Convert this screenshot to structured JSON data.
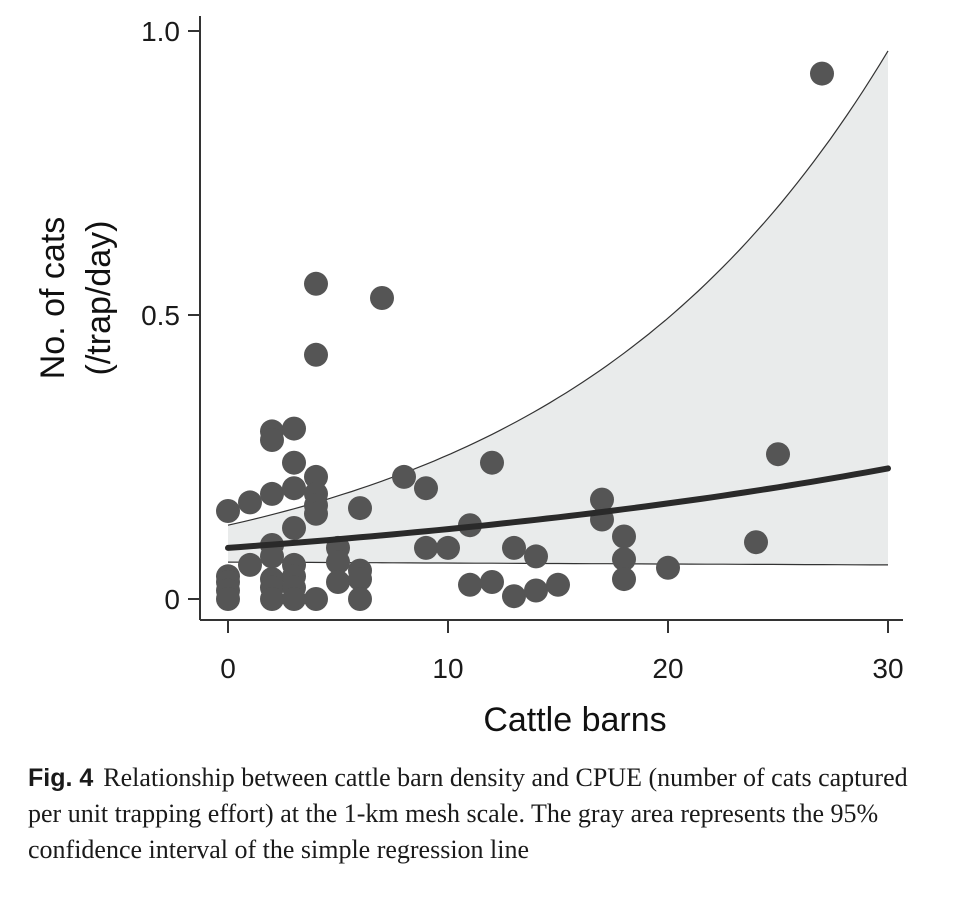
{
  "chart_data": {
    "type": "scatter",
    "xlabel": "Cattle barns",
    "ylabel_line1": "No. of cats",
    "ylabel_line2": "(/trap/day)",
    "xlim": [
      0,
      30
    ],
    "ylim": [
      0,
      1.0
    ],
    "x_ticks": [
      0,
      10,
      20,
      30
    ],
    "x_tick_labels": [
      "0",
      "10",
      "20",
      "30"
    ],
    "y_ticks": [
      0,
      0.5,
      1.0
    ],
    "y_tick_labels": [
      "0",
      "0.5",
      "1.0"
    ],
    "grid": false,
    "points": [
      {
        "x": 0,
        "y": 0.155
      },
      {
        "x": 0,
        "y": 0.04
      },
      {
        "x": 0,
        "y": 0.03
      },
      {
        "x": 0,
        "y": 0.015
      },
      {
        "x": 0,
        "y": 0.0
      },
      {
        "x": 1,
        "y": 0.17
      },
      {
        "x": 1,
        "y": 0.06
      },
      {
        "x": 2,
        "y": 0.295
      },
      {
        "x": 2,
        "y": 0.28
      },
      {
        "x": 2,
        "y": 0.185
      },
      {
        "x": 2,
        "y": 0.095
      },
      {
        "x": 2,
        "y": 0.075
      },
      {
        "x": 2,
        "y": 0.035
      },
      {
        "x": 2,
        "y": 0.02
      },
      {
        "x": 2,
        "y": 0.0
      },
      {
        "x": 3,
        "y": 0.3
      },
      {
        "x": 3,
        "y": 0.24
      },
      {
        "x": 3,
        "y": 0.195
      },
      {
        "x": 3,
        "y": 0.125
      },
      {
        "x": 3,
        "y": 0.06
      },
      {
        "x": 3,
        "y": 0.04
      },
      {
        "x": 3,
        "y": 0.02
      },
      {
        "x": 3,
        "y": 0.0
      },
      {
        "x": 4,
        "y": 0.555
      },
      {
        "x": 4,
        "y": 0.43
      },
      {
        "x": 4,
        "y": 0.215
      },
      {
        "x": 4,
        "y": 0.185
      },
      {
        "x": 4,
        "y": 0.165
      },
      {
        "x": 4,
        "y": 0.15
      },
      {
        "x": 4,
        "y": 0.0
      },
      {
        "x": 5,
        "y": 0.09
      },
      {
        "x": 5,
        "y": 0.065
      },
      {
        "x": 5,
        "y": 0.03
      },
      {
        "x": 6,
        "y": 0.16
      },
      {
        "x": 6,
        "y": 0.05
      },
      {
        "x": 6,
        "y": 0.035
      },
      {
        "x": 6,
        "y": 0.0
      },
      {
        "x": 7,
        "y": 0.53
      },
      {
        "x": 8,
        "y": 0.215
      },
      {
        "x": 9,
        "y": 0.195
      },
      {
        "x": 9,
        "y": 0.09
      },
      {
        "x": 10,
        "y": 0.09
      },
      {
        "x": 11,
        "y": 0.13
      },
      {
        "x": 11,
        "y": 0.025
      },
      {
        "x": 12,
        "y": 0.24
      },
      {
        "x": 12,
        "y": 0.03
      },
      {
        "x": 13,
        "y": 0.09
      },
      {
        "x": 13,
        "y": 0.005
      },
      {
        "x": 14,
        "y": 0.075
      },
      {
        "x": 14,
        "y": 0.015
      },
      {
        "x": 15,
        "y": 0.025
      },
      {
        "x": 17,
        "y": 0.175
      },
      {
        "x": 17,
        "y": 0.14
      },
      {
        "x": 18,
        "y": 0.11
      },
      {
        "x": 18,
        "y": 0.07
      },
      {
        "x": 18,
        "y": 0.035
      },
      {
        "x": 20,
        "y": 0.055
      },
      {
        "x": 24,
        "y": 0.1
      },
      {
        "x": 25,
        "y": 0.255
      },
      {
        "x": 27,
        "y": 0.925
      }
    ],
    "fit_line": {
      "label": "simple regression line",
      "x0": 0,
      "y0": 0.09,
      "x1": 30,
      "y1": 0.23
    },
    "confidence_band": {
      "label": "95% confidence interval",
      "lower_x0": 0,
      "lower_y0": 0.065,
      "lower_x1": 30,
      "lower_y1": 0.06,
      "upper_x0": 0,
      "upper_y0": 0.13,
      "upper_x1": 30,
      "upper_y1": 0.965
    },
    "colors": {
      "points": "#555555",
      "fit": "#2a2a2a",
      "band_fill": "#e9ebeb",
      "band_edge": "#333333",
      "axis": "#333333"
    }
  },
  "caption": {
    "label": "Fig. 4",
    "text": "Relationship between cattle barn density and CPUE (number of cats captured per unit trapping effort) at the 1-km mesh scale. The gray area represents the 95% confidence interval of the simple regression line"
  }
}
